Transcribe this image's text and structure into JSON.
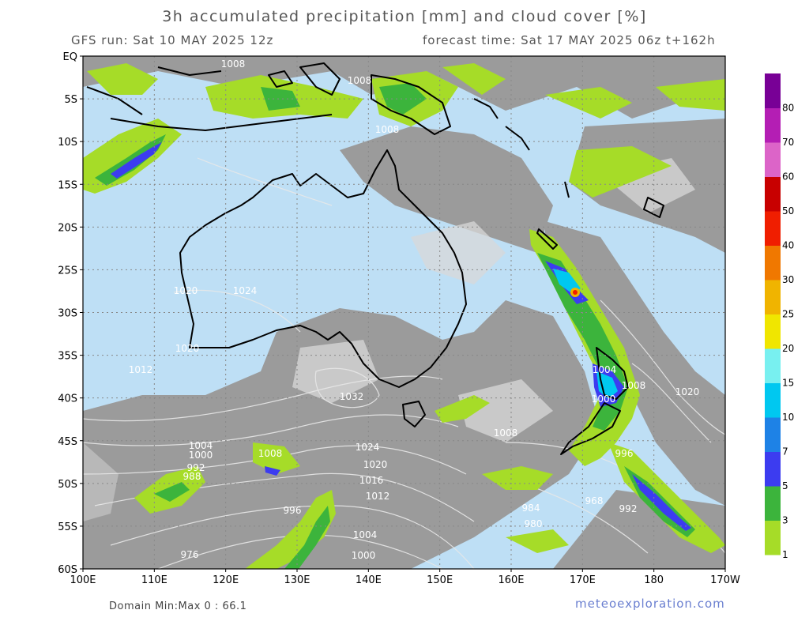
{
  "title": "3h accumulated precipitation [mm] and cloud cover [%]",
  "run_label": "GFS run: Sat 10 MAY 2025 12z",
  "forecast_label": "forecast time: Sat 17 MAY 2025 06z  t+162h",
  "domain_minmax": "Domain Min:Max 0 : 66.1",
  "watermark": "meteoexploration.com",
  "lat_labels": [
    "EQ",
    "5S",
    "10S",
    "15S",
    "20S",
    "25S",
    "30S",
    "35S",
    "40S",
    "45S",
    "50S",
    "55S",
    "60S"
  ],
  "lon_labels": [
    "100E",
    "110E",
    "120E",
    "130E",
    "140E",
    "150E",
    "160E",
    "170E",
    "180",
    "170W"
  ],
  "colorbar": {
    "labels": [
      "1",
      "3",
      "5",
      "7",
      "10",
      "15",
      "20",
      "25",
      "30",
      "40",
      "50",
      "60",
      "70",
      "80"
    ],
    "colors": [
      "#a6dc28",
      "#3cb43c",
      "#3c3cf0",
      "#1e82e6",
      "#00c8f0",
      "#78f0f0",
      "#f0e600",
      "#f0b400",
      "#f07800",
      "#f01e00",
      "#c80000",
      "#dc64c8",
      "#b41eb4",
      "#780096"
    ]
  },
  "isobar_labels": [
    "1008",
    "1008",
    "1008",
    "1020",
    "1024",
    "1020",
    "1012",
    "1032",
    "1024",
    "1020",
    "1016",
    "1012",
    "1004",
    "1000",
    "992",
    "988",
    "1008",
    "996",
    "976",
    "1008",
    "984",
    "980",
    "968",
    "992",
    "996",
    "1004",
    "1000",
    "1008",
    "1020",
    "1000",
    "1004"
  ],
  "colors": {
    "ocean": "#bedff5",
    "cloud": "#9b9b9b",
    "cloud_light": "#d8d8d8",
    "coast": "#000000",
    "isobar": "#e8e8e8"
  }
}
